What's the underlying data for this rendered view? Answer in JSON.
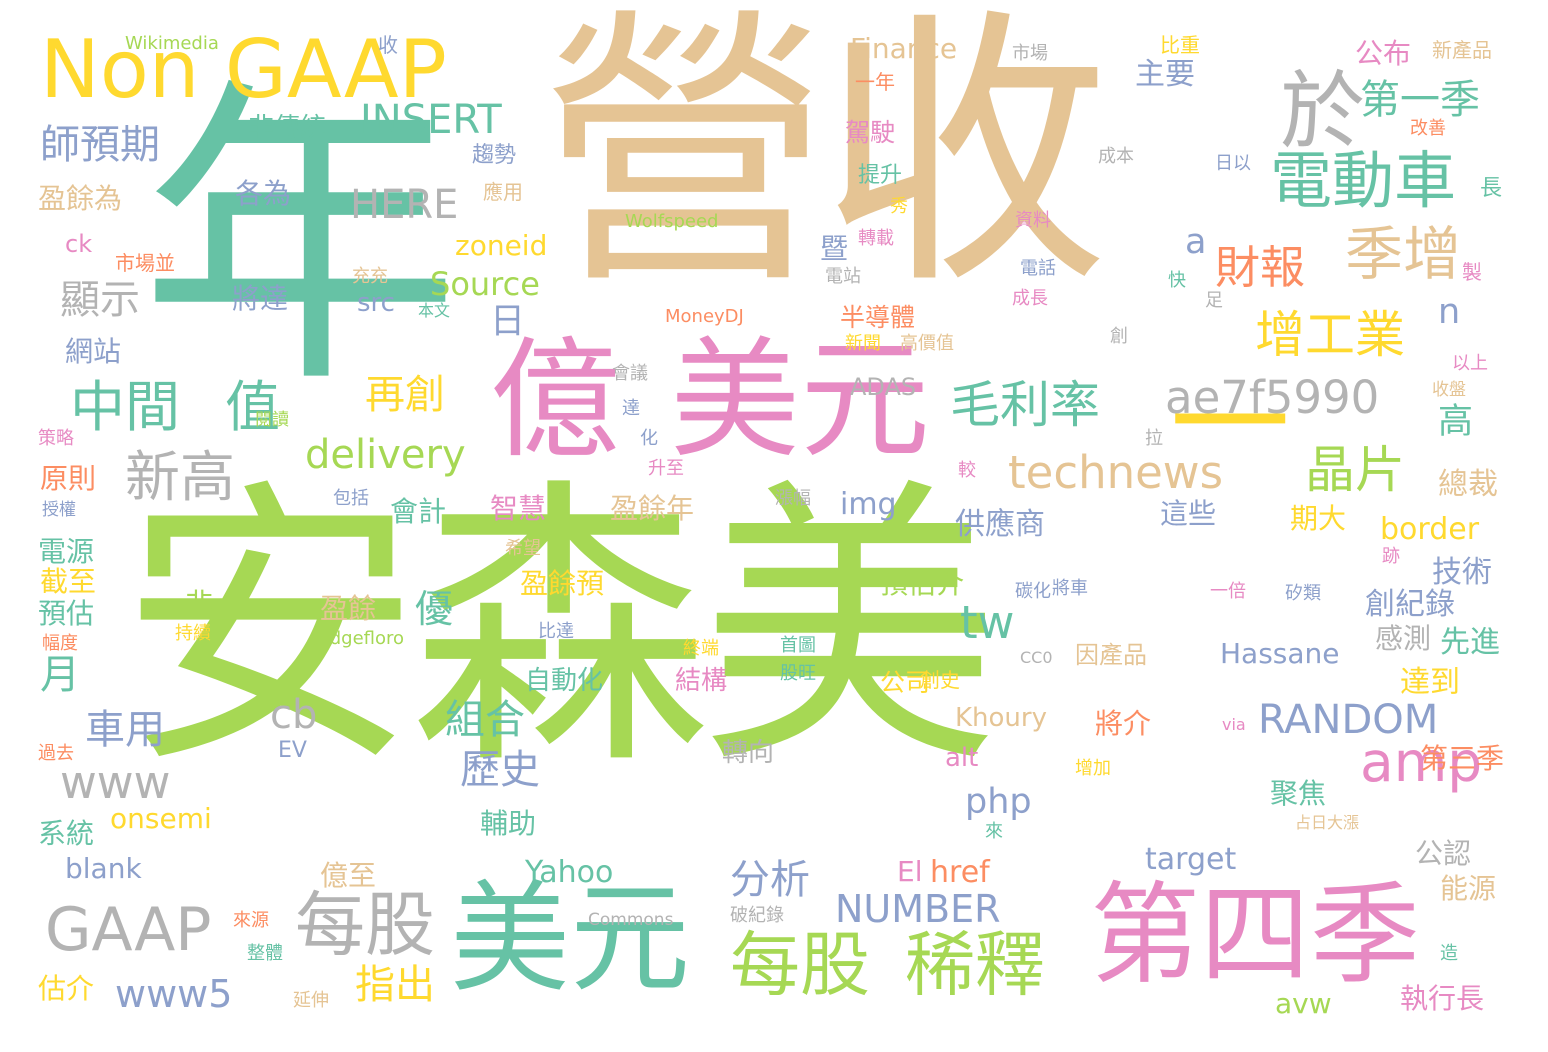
{
  "palette": {
    "green": "#a6d854",
    "tan": "#e5c494",
    "teal": "#66c2a5",
    "pink": "#e78ac3",
    "yellow": "#ffd92f",
    "gray": "#b3b3b3",
    "blue": "#8da0cb",
    "orange": "#fc8d62"
  },
  "words": [
    {
      "text": "安森美",
      "color": "green"
    },
    {
      "text": "營收",
      "color": "tan"
    },
    {
      "text": "年",
      "color": "teal"
    },
    {
      "text": "億",
      "color": "pink"
    },
    {
      "text": "美元",
      "color": "pink"
    },
    {
      "text": "美元",
      "color": "teal"
    },
    {
      "text": "第四季",
      "color": "pink"
    },
    {
      "text": "Non GAAP",
      "color": "yellow"
    },
    {
      "text": "於",
      "color": "gray"
    },
    {
      "text": "電動車",
      "color": "teal"
    },
    {
      "text": "第一季",
      "color": "teal"
    },
    {
      "text": "季增",
      "color": "tan"
    },
    {
      "text": "財報",
      "color": "orange"
    },
    {
      "text": "增工業",
      "color": "yellow"
    },
    {
      "text": "毛利率",
      "color": "teal"
    },
    {
      "text": "ae7f5990",
      "color": "gray"
    },
    {
      "text": "technews",
      "color": "tan"
    },
    {
      "text": "晶片",
      "color": "green"
    },
    {
      "text": "amp",
      "color": "pink"
    },
    {
      "text": "GAAP",
      "color": "gray"
    },
    {
      "text": "每股",
      "color": "gray"
    },
    {
      "text": "每股",
      "color": "green"
    },
    {
      "text": "稀釋",
      "color": "green"
    },
    {
      "text": "中間",
      "color": "teal"
    },
    {
      "text": "值",
      "color": "teal"
    },
    {
      "text": "新高",
      "color": "gray"
    },
    {
      "text": "INSERT",
      "color": "teal"
    },
    {
      "text": "HERE",
      "color": "gray"
    },
    {
      "text": "師預期",
      "color": "blue"
    },
    {
      "text": "顯示",
      "color": "gray"
    },
    {
      "text": "delivery",
      "color": "green"
    },
    {
      "text": "RANDOM",
      "color": "blue"
    },
    {
      "text": "www",
      "color": "gray"
    },
    {
      "text": "www5",
      "color": "blue"
    },
    {
      "text": "NUMBER",
      "color": "blue"
    },
    {
      "text": "tw",
      "color": "teal"
    },
    {
      "text": "php",
      "color": "blue"
    },
    {
      "text": "cb",
      "color": "gray"
    },
    {
      "text": "Source",
      "color": "green"
    },
    {
      "text": "zoneid",
      "color": "yellow"
    },
    {
      "text": "歷史",
      "color": "blue"
    },
    {
      "text": "組合",
      "color": "teal"
    },
    {
      "text": "再創",
      "color": "yellow"
    },
    {
      "text": "車用",
      "color": "blue"
    },
    {
      "text": "月",
      "color": "teal"
    },
    {
      "text": "日",
      "color": "blue"
    },
    {
      "text": "a",
      "color": "blue"
    },
    {
      "text": "n",
      "color": "blue"
    },
    {
      "text": "分析",
      "color": "blue"
    },
    {
      "text": "指出",
      "color": "yellow"
    },
    {
      "text": "Finance",
      "color": "tan"
    },
    {
      "text": "Wikimedia",
      "color": "green"
    },
    {
      "text": "收",
      "color": "blue"
    },
    {
      "text": "主要",
      "color": "blue"
    },
    {
      "text": "公布",
      "color": "pink"
    },
    {
      "text": "新產品",
      "color": "tan"
    },
    {
      "text": "比重",
      "color": "yellow"
    },
    {
      "text": "市場",
      "color": "gray"
    },
    {
      "text": "高",
      "color": "teal"
    },
    {
      "text": "總裁",
      "color": "tan"
    },
    {
      "text": "border",
      "color": "yellow"
    },
    {
      "text": "技術",
      "color": "blue"
    },
    {
      "text": "創紀錄",
      "color": "blue"
    },
    {
      "text": "先進",
      "color": "teal"
    },
    {
      "text": "達到",
      "color": "yellow"
    },
    {
      "text": "感測",
      "color": "gray"
    },
    {
      "text": "Hassane",
      "color": "blue"
    },
    {
      "text": "供應商",
      "color": "blue"
    },
    {
      "text": "期大",
      "color": "yellow"
    },
    {
      "text": "這些",
      "color": "blue"
    },
    {
      "text": "第三季",
      "color": "orange"
    },
    {
      "text": "聚焦",
      "color": "teal"
    },
    {
      "text": "公認",
      "color": "gray"
    },
    {
      "text": "能源",
      "color": "tan"
    },
    {
      "text": "執行長",
      "color": "pink"
    },
    {
      "text": "avw",
      "color": "green"
    },
    {
      "text": "target",
      "color": "blue"
    },
    {
      "text": "Yahoo",
      "color": "teal"
    },
    {
      "text": "El",
      "color": "pink"
    },
    {
      "text": "href",
      "color": "orange"
    },
    {
      "text": "img",
      "color": "blue"
    },
    {
      "text": "alt",
      "color": "pink"
    },
    {
      "text": "Khoury",
      "color": "tan"
    },
    {
      "text": "將介",
      "color": "orange"
    },
    {
      "text": "onsemi",
      "color": "yellow"
    },
    {
      "text": "blank",
      "color": "blue"
    },
    {
      "text": "系統",
      "color": "teal"
    },
    {
      "text": "電源",
      "color": "teal"
    },
    {
      "text": "截至",
      "color": "yellow"
    },
    {
      "text": "預估",
      "color": "teal"
    },
    {
      "text": "原則",
      "color": "orange"
    },
    {
      "text": "估介",
      "color": "yellow"
    },
    {
      "text": "盈餘為",
      "color": "tan"
    },
    {
      "text": "網站",
      "color": "blue"
    },
    {
      "text": "各為",
      "color": "blue"
    },
    {
      "text": "將達",
      "color": "blue"
    },
    {
      "text": "src",
      "color": "blue"
    },
    {
      "text": "非傳統",
      "color": "teal"
    },
    {
      "text": "趨勢",
      "color": "blue"
    },
    {
      "text": "應用",
      "color": "tan"
    },
    {
      "text": "ck",
      "color": "pink"
    },
    {
      "text": "市場並",
      "color": "orange"
    },
    {
      "text": "半導體",
      "color": "orange"
    },
    {
      "text": "暨",
      "color": "blue"
    },
    {
      "text": "駕駛",
      "color": "pink"
    },
    {
      "text": "提升",
      "color": "teal"
    },
    {
      "text": "一年",
      "color": "orange"
    },
    {
      "text": "ADAS",
      "color": "gray"
    },
    {
      "text": "會計",
      "color": "teal"
    },
    {
      "text": "智慧",
      "color": "pink"
    },
    {
      "text": "盈餘年",
      "color": "tan"
    },
    {
      "text": "預估介",
      "color": "green"
    },
    {
      "text": "盈餘預",
      "color": "yellow"
    },
    {
      "text": "盈餘",
      "color": "tan"
    },
    {
      "text": "優",
      "color": "teal"
    },
    {
      "text": "非",
      "color": "green"
    },
    {
      "text": "自動化",
      "color": "teal"
    },
    {
      "text": "結構",
      "color": "pink"
    },
    {
      "text": "公司",
      "color": "yellow"
    },
    {
      "text": "創史",
      "color": "yellow"
    },
    {
      "text": "因產品",
      "color": "tan"
    },
    {
      "text": "轉向",
      "color": "gray"
    },
    {
      "text": "輔助",
      "color": "teal"
    },
    {
      "text": "億至",
      "color": "tan"
    },
    {
      "text": "MoneyDJ",
      "color": "orange"
    },
    {
      "text": "Wolfspeed",
      "color": "green"
    },
    {
      "text": "Commons",
      "color": "gray"
    },
    {
      "text": "Judgefloro",
      "color": "green"
    },
    {
      "text": "CC0",
      "color": "gray"
    },
    {
      "text": "EV",
      "color": "blue"
    },
    {
      "text": "via",
      "color": "pink"
    },
    {
      "text": "成本",
      "color": "gray"
    },
    {
      "text": "日以",
      "color": "blue"
    },
    {
      "text": "改善",
      "color": "orange"
    },
    {
      "text": "長",
      "color": "teal"
    },
    {
      "text": "資料",
      "color": "pink"
    },
    {
      "text": "電話",
      "color": "blue"
    },
    {
      "text": "成長",
      "color": "pink"
    },
    {
      "text": "快",
      "color": "teal"
    },
    {
      "text": "足",
      "color": "gray"
    },
    {
      "text": "製",
      "color": "pink"
    },
    {
      "text": "以上",
      "color": "pink"
    },
    {
      "text": "收盤",
      "color": "tan"
    },
    {
      "text": "會議",
      "color": "gray"
    },
    {
      "text": "達",
      "color": "blue"
    },
    {
      "text": "化",
      "color": "blue"
    },
    {
      "text": "升至",
      "color": "pink"
    },
    {
      "text": "拉",
      "color": "gray"
    },
    {
      "text": "較",
      "color": "pink"
    },
    {
      "text": "漲幅",
      "color": "gray"
    },
    {
      "text": "包括",
      "color": "blue"
    },
    {
      "text": "閱讀",
      "color": "green"
    },
    {
      "text": "策略",
      "color": "pink"
    },
    {
      "text": "授權",
      "color": "blue"
    },
    {
      "text": "希望",
      "color": "tan"
    },
    {
      "text": "碳化",
      "color": "blue"
    },
    {
      "text": "將車",
      "color": "blue"
    },
    {
      "text": "一倍",
      "color": "pink"
    },
    {
      "text": "矽類",
      "color": "blue"
    },
    {
      "text": "跡",
      "color": "pink"
    },
    {
      "text": "幅度",
      "color": "orange"
    },
    {
      "text": "持續",
      "color": "yellow"
    },
    {
      "text": "比達",
      "color": "blue"
    },
    {
      "text": "終端",
      "color": "yellow"
    },
    {
      "text": "首圖",
      "color": "teal"
    },
    {
      "text": "股旺",
      "color": "teal"
    },
    {
      "text": "過去",
      "color": "orange"
    },
    {
      "text": "來",
      "color": "teal"
    },
    {
      "text": "增加",
      "color": "yellow"
    },
    {
      "text": "占日大漲",
      "color": "tan"
    },
    {
      "text": "來源",
      "color": "orange"
    },
    {
      "text": "破紀錄",
      "color": "gray"
    },
    {
      "text": "整體",
      "color": "teal"
    },
    {
      "text": "延伸",
      "color": "tan"
    },
    {
      "text": "造",
      "color": "teal"
    },
    {
      "text": "轉載",
      "color": "pink"
    },
    {
      "text": "充充",
      "color": "tan"
    },
    {
      "text": "本文",
      "color": "teal"
    },
    {
      "text": "秀",
      "color": "yellow"
    },
    {
      "text": "電站",
      "color": "gray"
    },
    {
      "text": "新聞",
      "color": "yellow"
    },
    {
      "text": "高價值",
      "color": "tan"
    },
    {
      "text": "創",
      "color": "gray"
    },
    {
      "text": "一",
      "color": "yellow"
    }
  ]
}
